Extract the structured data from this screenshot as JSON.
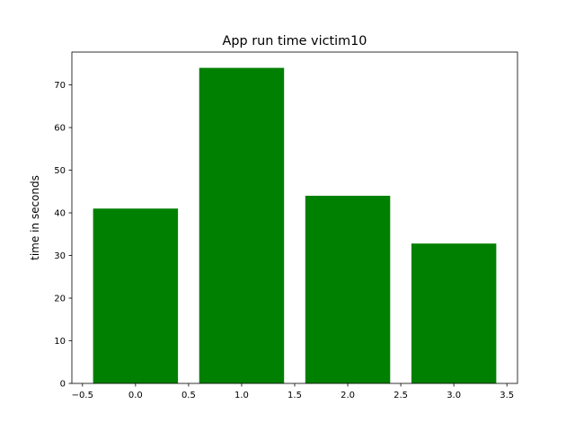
{
  "chart_data": {
    "type": "bar",
    "title": "App run time victim10",
    "xlabel": "",
    "ylabel": "time in seconds",
    "x": [
      0,
      1,
      2,
      3
    ],
    "values": [
      41,
      74,
      44,
      32.8
    ],
    "bar_width": 0.8,
    "xlim": [
      -0.6,
      3.6
    ],
    "ylim": [
      0,
      77.7
    ],
    "xticks": [
      -0.5,
      0.0,
      0.5,
      1.0,
      1.5,
      2.0,
      2.5,
      3.0,
      3.5
    ],
    "xtick_labels": [
      "−0.5",
      "0.0",
      "0.5",
      "1.0",
      "1.5",
      "2.0",
      "2.5",
      "3.0",
      "3.5"
    ],
    "yticks": [
      0,
      10,
      20,
      30,
      40,
      50,
      60,
      70
    ],
    "ytick_labels": [
      "0",
      "10",
      "20",
      "30",
      "40",
      "50",
      "60",
      "70"
    ],
    "bar_color": "#008000",
    "grid": false,
    "legend": "none"
  }
}
